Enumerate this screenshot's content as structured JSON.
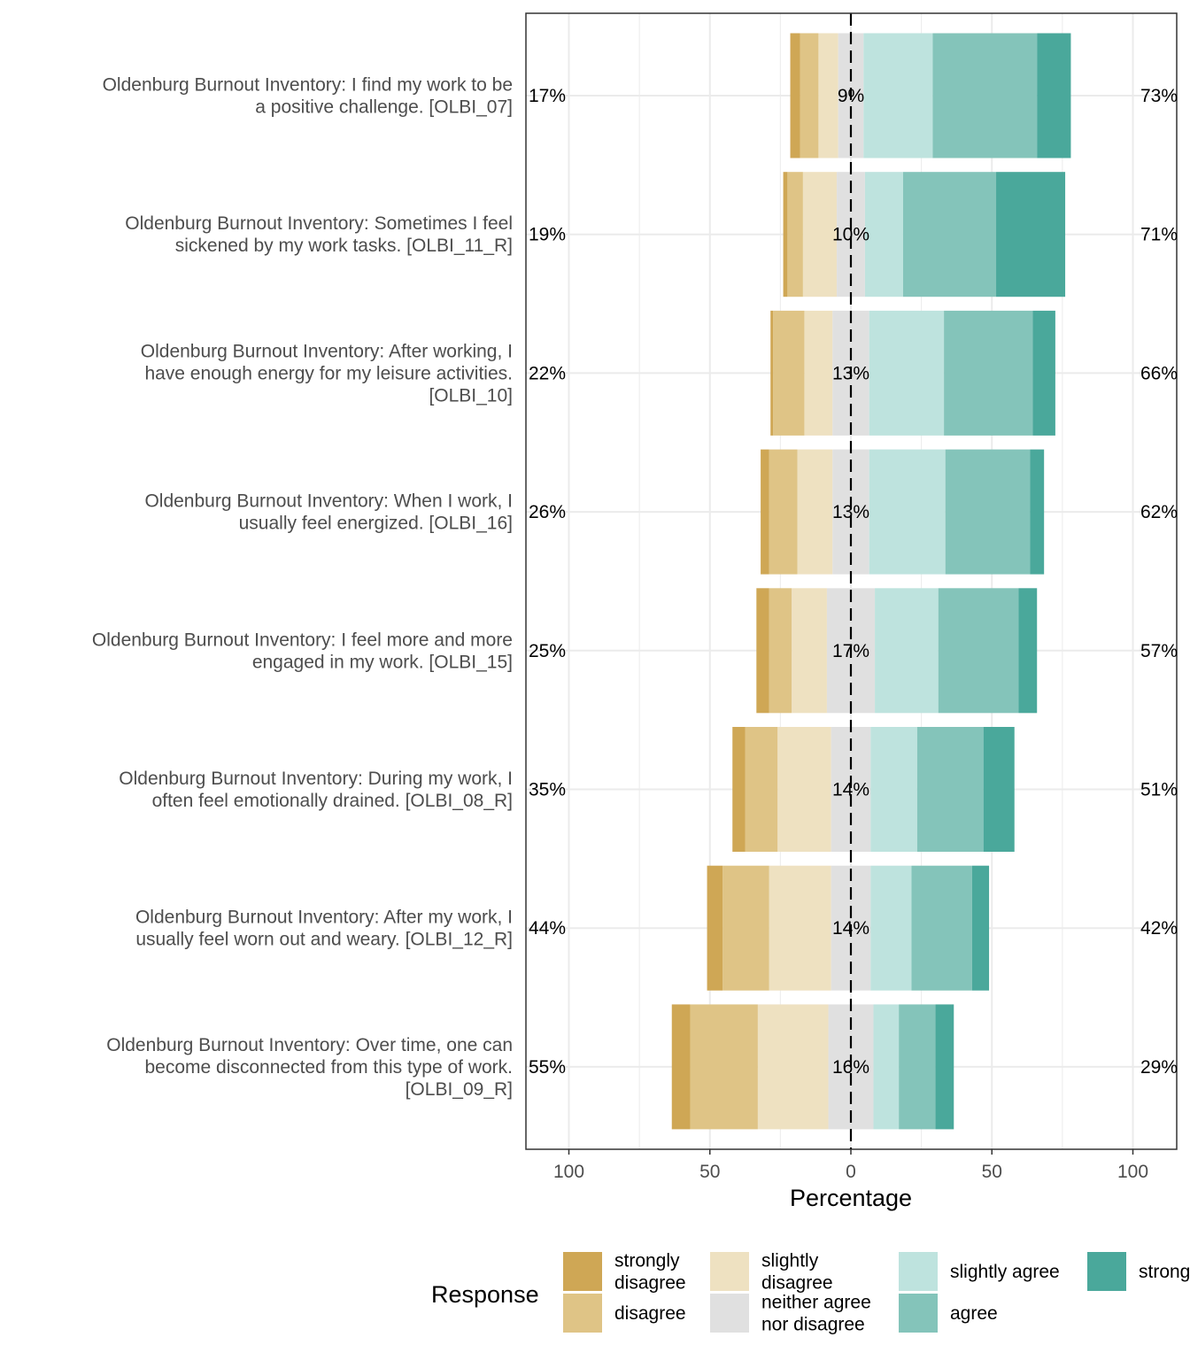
{
  "chart_data": {
    "type": "bar",
    "orientation": "horizontal-diverging-stacked",
    "title": "",
    "xlabel": "Percentage",
    "ylabel": "",
    "xlim": [
      -100,
      100
    ],
    "x_ticks": [
      {
        "value": -100,
        "label": "100"
      },
      {
        "value": -50,
        "label": "50"
      },
      {
        "value": 0,
        "label": "0"
      },
      {
        "value": 50,
        "label": "50"
      },
      {
        "value": 100,
        "label": "100"
      }
    ],
    "grid": true,
    "legend_title": "Response",
    "legend_position": "bottom",
    "response_levels": [
      {
        "name": "strongly disagree",
        "label_lines": [
          "strongly",
          "disagree"
        ],
        "color": "#CFA755"
      },
      {
        "name": "disagree",
        "label_lines": [
          "disagree"
        ],
        "color": "#DFC486"
      },
      {
        "name": "slightly disagree",
        "label_lines": [
          "slightly",
          "disagree"
        ],
        "color": "#EEE1C1"
      },
      {
        "name": "neither agree nor disagree",
        "label_lines": [
          "neither agree",
          "nor disagree"
        ],
        "color": "#E0E0E0"
      },
      {
        "name": "slightly agree",
        "label_lines": [
          "slightly agree"
        ],
        "color": "#BEE3DE"
      },
      {
        "name": "agree",
        "label_lines": [
          "agree"
        ],
        "color": "#84C4BA"
      },
      {
        "name": "strongly agree",
        "label_lines": [
          "strongly agree"
        ],
        "color": "#4AA89B"
      }
    ],
    "items": [
      {
        "label_lines": [
          "Oldenburg Burnout Inventory: I find my work to be",
          "a positive challenge. [OLBI_07]"
        ],
        "values": [
          3.5,
          6.5,
          7.0,
          9.0,
          24.5,
          37.0,
          12.0
        ],
        "low_pct": "17%",
        "neutral_pct": "9%",
        "high_pct": "73%"
      },
      {
        "label_lines": [
          "Oldenburg Burnout Inventory: Sometimes I feel",
          "sickened by my work tasks. [OLBI_11_R]"
        ],
        "values": [
          1.5,
          5.5,
          12.0,
          10.0,
          13.5,
          33.0,
          24.5
        ],
        "low_pct": "19%",
        "neutral_pct": "10%",
        "high_pct": "71%"
      },
      {
        "label_lines": [
          "Oldenburg Burnout Inventory: After working, I",
          "have enough energy for my leisure activities.",
          "[OLBI_10]"
        ],
        "values": [
          0.9,
          11.1,
          10.0,
          13.0,
          26.5,
          31.5,
          8.0
        ],
        "low_pct": "22%",
        "neutral_pct": "13%",
        "high_pct": "66%"
      },
      {
        "label_lines": [
          "Oldenburg Burnout Inventory: When I work, I",
          "usually feel energized. [OLBI_16]"
        ],
        "values": [
          3.0,
          10.0,
          12.5,
          13.0,
          27.0,
          30.0,
          5.0
        ],
        "low_pct": "26%",
        "neutral_pct": "13%",
        "high_pct": "62%"
      },
      {
        "label_lines": [
          "Oldenburg Burnout Inventory: I feel more and more",
          "engaged in my work. [OLBI_15]"
        ],
        "values": [
          4.5,
          8.0,
          12.5,
          17.0,
          22.5,
          28.5,
          6.5
        ],
        "low_pct": "25%",
        "neutral_pct": "17%",
        "high_pct": "57%"
      },
      {
        "label_lines": [
          "Oldenburg Burnout Inventory: During my work, I",
          "often feel emotionally drained. [OLBI_08_R]"
        ],
        "values": [
          4.5,
          11.5,
          19.0,
          14.0,
          16.5,
          23.5,
          11.0
        ],
        "low_pct": "35%",
        "neutral_pct": "14%",
        "high_pct": "51%"
      },
      {
        "label_lines": [
          "Oldenburg Burnout Inventory: After my work, I",
          "usually feel worn out and weary. [OLBI_12_R]"
        ],
        "values": [
          5.5,
          16.5,
          22.0,
          14.0,
          14.5,
          21.5,
          6.0
        ],
        "low_pct": "44%",
        "neutral_pct": "14%",
        "high_pct": "42%"
      },
      {
        "label_lines": [
          "Oldenburg Burnout Inventory: Over time, one can",
          "become disconnected from this type of work.",
          "[OLBI_09_R]"
        ],
        "values": [
          6.5,
          24.0,
          25.0,
          16.0,
          9.0,
          13.0,
          6.5
        ],
        "low_pct": "55%",
        "neutral_pct": "16%",
        "high_pct": "29%"
      }
    ]
  }
}
